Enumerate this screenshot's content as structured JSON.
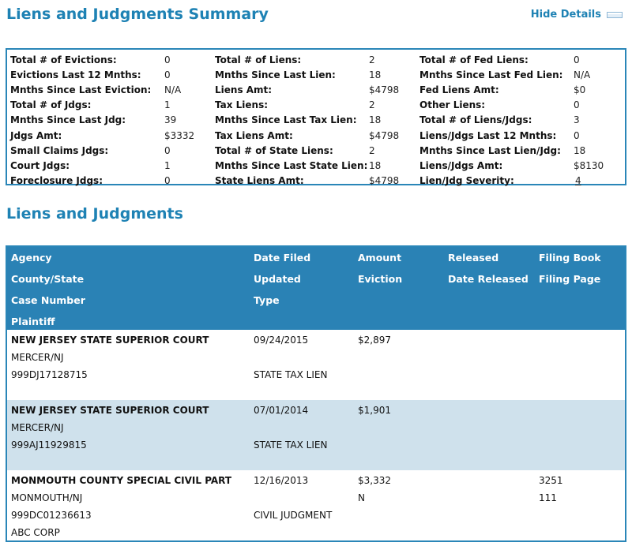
{
  "summary_title": "Liens and Judgments Summary",
  "hide_details": "Hide Details",
  "summary": {
    "col1": [
      {
        "label": "Total # of Evictions:",
        "value": "0"
      },
      {
        "label": "Evictions Last 12 Mnths:",
        "value": "0"
      },
      {
        "label": "Mnths Since Last Eviction:",
        "value": "N/A"
      },
      {
        "label": "Total # of Jdgs:",
        "value": "1"
      },
      {
        "label": "Mnths Since Last Jdg:",
        "value": "39"
      },
      {
        "label": "Jdgs Amt:",
        "value": "$3332"
      },
      {
        "label": "Small Claims Jdgs:",
        "value": "0"
      },
      {
        "label": "Court Jdgs:",
        "value": "1"
      },
      {
        "label": "Foreclosure Jdgs:",
        "value": "0"
      }
    ],
    "col2": [
      {
        "label": "Total # of Liens:",
        "value": "2"
      },
      {
        "label": "Mnths Since Last Lien:",
        "value": "18"
      },
      {
        "label": "Liens Amt:",
        "value": "$4798"
      },
      {
        "label": "Tax Liens:",
        "value": "2"
      },
      {
        "label": "Mnths Since Last Tax Lien:",
        "value": "18"
      },
      {
        "label": "Tax Liens Amt:",
        "value": "$4798"
      },
      {
        "label": "Total # of State Liens:",
        "value": "2"
      },
      {
        "label": "Mnths Since Last State Lien:",
        "value": "18"
      },
      {
        "label": "State Liens Amt:",
        "value": "$4798"
      }
    ],
    "col3": [
      {
        "label": "Total # of Fed Liens:",
        "value": "0"
      },
      {
        "label": "Mnths Since Last Fed Lien:",
        "value": "N/A"
      },
      {
        "label": "Fed Liens Amt:",
        "value": "$0"
      },
      {
        "label": "Other Liens:",
        "value": "0"
      },
      {
        "label": "Total # of Liens/Jdgs:",
        "value": "3"
      },
      {
        "label": "Liens/Jdgs Last 12 Mnths:",
        "value": "0"
      },
      {
        "label": "Mnths Since Last Lien/Jdg:",
        "value": "18"
      },
      {
        "label": "Liens/Jdgs Amt:",
        "value": "$8130"
      },
      {
        "label": "Lien/Jdg Severity:",
        "value": "4"
      }
    ]
  },
  "liens_title": "Liens and Judgments",
  "table": {
    "headers": {
      "agency": "Agency",
      "county_state": "County/State",
      "case_number": "Case Number",
      "plaintiff": "Plaintiff",
      "date_filed": "Date Filed",
      "updated": "Updated",
      "type": "Type",
      "amount": "Amount",
      "eviction": "Eviction",
      "released": "Released",
      "date_released": "Date Released",
      "filing_book": "Filing Book",
      "filing_page": "Filing Page"
    },
    "rows": [
      {
        "agency": "NEW JERSEY STATE SUPERIOR COURT",
        "county_state": "MERCER/NJ",
        "case_number": "999DJ17128715",
        "plaintiff": "",
        "date_filed": "09/24/2015",
        "updated": "",
        "type": "STATE TAX LIEN",
        "amount": "$2,897",
        "eviction": "",
        "released": "",
        "date_released": "",
        "filing_book": "",
        "filing_page": ""
      },
      {
        "agency": "NEW JERSEY STATE SUPERIOR COURT",
        "county_state": "MERCER/NJ",
        "case_number": "999AJ11929815",
        "plaintiff": "",
        "date_filed": "07/01/2014",
        "updated": "",
        "type": "STATE TAX LIEN",
        "amount": "$1,901",
        "eviction": "",
        "released": "",
        "date_released": "",
        "filing_book": "",
        "filing_page": ""
      },
      {
        "agency": "MONMOUTH COUNTY SPECIAL CIVIL PART",
        "county_state": "MONMOUTH/NJ",
        "case_number": "999DC01236613",
        "plaintiff": "ABC CORP",
        "date_filed": "12/16/2013",
        "updated": "",
        "type": "CIVIL JUDGMENT",
        "amount": "$3,332",
        "eviction": "N",
        "released": "",
        "date_released": "",
        "filing_book": "3251",
        "filing_page": "111"
      }
    ]
  },
  "colors": {
    "accent": "#1e82b4",
    "header_bg": "#2a82b5",
    "alt_row_bg": "#cfe1ec"
  }
}
